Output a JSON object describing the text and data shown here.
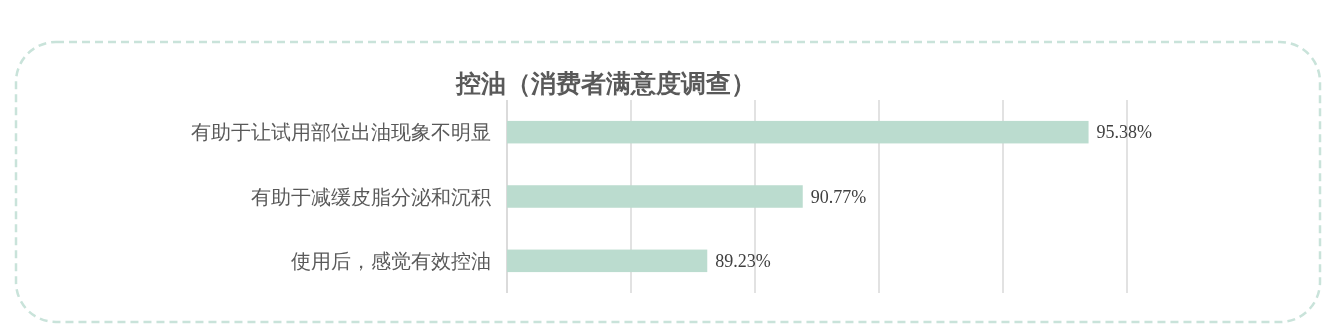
{
  "chart_data": {
    "type": "bar",
    "orientation": "horizontal",
    "title": "控油（消费者满意度调查）",
    "categories": [
      "有助于让试用部位出油现象不明显",
      "有助于减缓皮脂分泌和沉积",
      "使用后，感觉有效控油"
    ],
    "values": [
      95.38,
      90.77,
      89.23
    ],
    "value_labels": [
      "95.38%",
      "90.77%",
      "89.23%"
    ],
    "color": "#bbdccf",
    "xlim": [
      86,
      96
    ],
    "xticks": [
      {
        "value": 86,
        "label": null
      },
      {
        "value": 88,
        "label": null
      },
      {
        "value": 90,
        "label": null
      },
      {
        "value": 92,
        "label": null
      },
      {
        "value": 94,
        "label": null
      },
      {
        "value": 96,
        "label": null
      }
    ],
    "tick_labels": "y",
    "grid": "x"
  }
}
